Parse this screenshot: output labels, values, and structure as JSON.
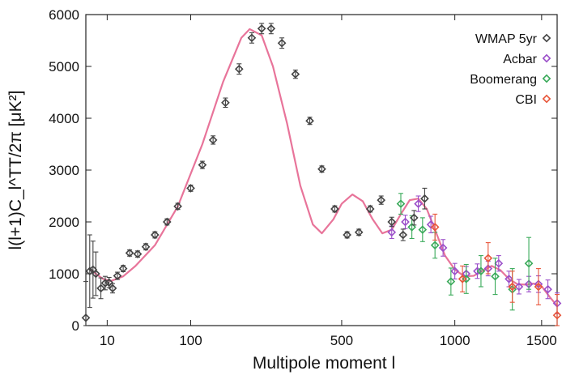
{
  "chart_data": {
    "type": "scatter",
    "title": "",
    "xlabel": "Multipole moment l",
    "ylabel": "l(l+1)C_l^TT/2π [μK²]",
    "x_scale": "sqrt",
    "xlim": [
      2,
      1600
    ],
    "ylim": [
      0,
      6000
    ],
    "x_ticks": [
      10,
      100,
      500,
      1000,
      1500
    ],
    "y_ticks": [
      0,
      1000,
      2000,
      3000,
      4000,
      5000,
      6000
    ],
    "grid": false,
    "legend_position": "top-right",
    "model_curve": {
      "color": "#e8749a",
      "x": [
        3,
        5,
        8,
        12,
        20,
        30,
        50,
        80,
        120,
        160,
        200,
        220,
        250,
        280,
        320,
        360,
        400,
        430,
        470,
        500,
        540,
        580,
        620,
        660,
        700,
        740,
        780,
        820,
        860,
        900,
        950,
        1000,
        1050,
        1100,
        1150,
        1200,
        1250,
        1300,
        1350,
        1400,
        1450,
        1500,
        1550,
        1600
      ],
      "y": [
        1100,
        1000,
        900,
        860,
        950,
        1150,
        1550,
        2300,
        3500,
        4700,
        5550,
        5720,
        5600,
        5000,
        3900,
        2700,
        1950,
        1780,
        2050,
        2350,
        2530,
        2400,
        2050,
        1780,
        1850,
        2150,
        2420,
        2450,
        2250,
        1850,
        1350,
        1080,
        950,
        960,
        1060,
        1150,
        1070,
        900,
        800,
        790,
        810,
        760,
        560,
        380
      ]
    },
    "series": [
      {
        "name": "WMAP 5yr",
        "color": "#444444",
        "x": [
          2,
          3,
          4,
          5,
          7,
          9,
          11,
          13,
          16,
          20,
          25,
          32,
          40,
          50,
          65,
          80,
          100,
          120,
          140,
          165,
          195,
          225,
          250,
          275,
          305,
          345,
          390,
          430,
          475,
          520,
          565,
          610,
          655,
          700,
          750,
          800,
          850
        ],
        "y": [
          150,
          1050,
          1080,
          1000,
          720,
          820,
          830,
          720,
          960,
          1100,
          1400,
          1380,
          1520,
          1750,
          2000,
          2300,
          2650,
          3100,
          3580,
          4300,
          4950,
          5550,
          5730,
          5730,
          5450,
          4850,
          3950,
          3020,
          2250,
          1750,
          1800,
          2250,
          2420,
          2000,
          1750,
          2080,
          2450
        ],
        "err": [
          700,
          700,
          550,
          420,
          200,
          130,
          100,
          90,
          70,
          60,
          60,
          60,
          60,
          60,
          60,
          60,
          60,
          70,
          80,
          90,
          100,
          100,
          100,
          100,
          100,
          80,
          70,
          60,
          60,
          60,
          60,
          60,
          80,
          90,
          110,
          140,
          200
        ]
      },
      {
        "name": "Acbar",
        "color": "#9b4fc9",
        "x": [
          700,
          760,
          820,
          880,
          940,
          1000,
          1060,
          1120,
          1180,
          1240,
          1300,
          1360,
          1420,
          1480,
          1540,
          1600
        ],
        "y": [
          1800,
          2000,
          2350,
          1950,
          1500,
          1050,
          1000,
          1050,
          1100,
          1200,
          900,
          750,
          800,
          800,
          700,
          430
        ],
        "err": [
          120,
          130,
          150,
          160,
          160,
          150,
          140,
          140,
          140,
          150,
          150,
          140,
          150,
          160,
          180,
          200
        ]
      },
      {
        "name": "Boomerang",
        "color": "#3aaa5a",
        "x": [
          740,
          790,
          840,
          900,
          980,
          1060,
          1140,
          1220,
          1320,
          1420
        ],
        "y": [
          2350,
          1900,
          1850,
          1550,
          850,
          900,
          1050,
          950,
          700,
          1200
        ],
        "err": [
          200,
          220,
          230,
          250,
          260,
          280,
          300,
          350,
          400,
          500
        ]
      },
      {
        "name": "CBI",
        "color": "#e8563a",
        "x": [
          900,
          1040,
          1180,
          1320,
          1480,
          1600
        ],
        "y": [
          1900,
          900,
          1300,
          750,
          750,
          200
        ],
        "err": [
          250,
          250,
          300,
          300,
          350,
          400
        ]
      }
    ]
  }
}
